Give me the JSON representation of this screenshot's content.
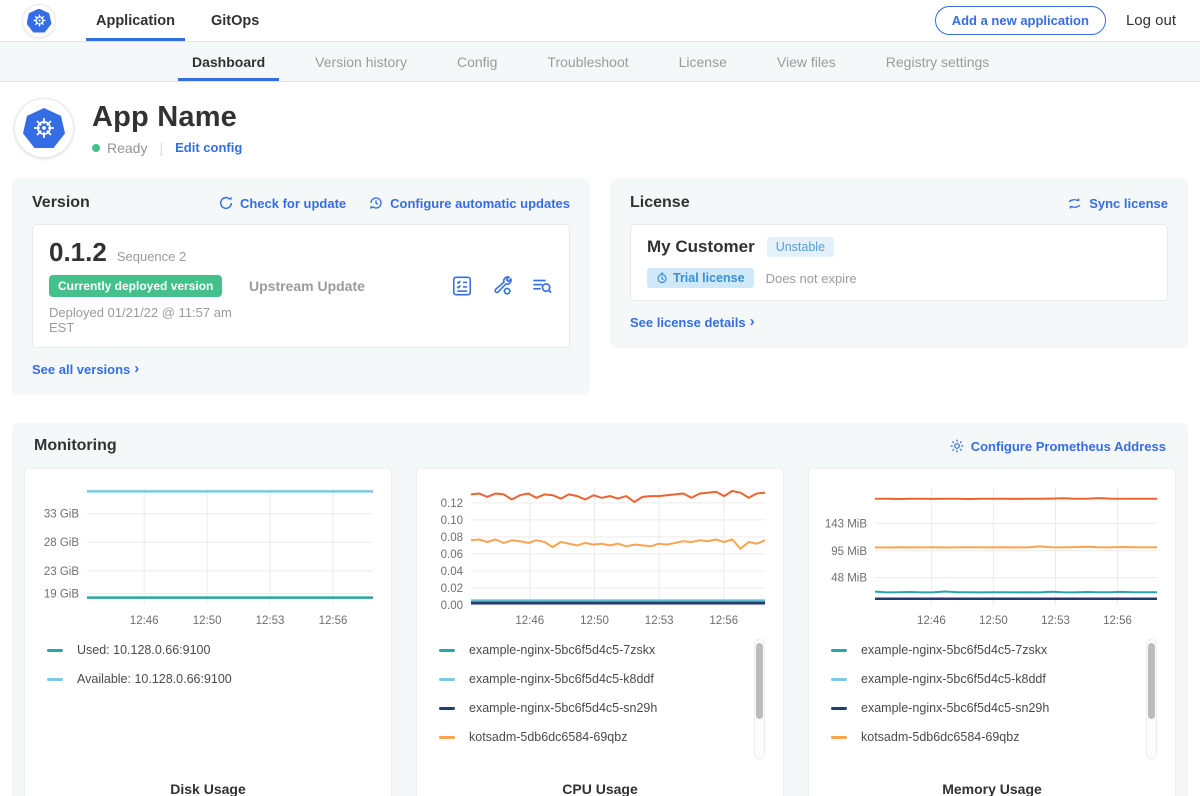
{
  "colors": {
    "accent_blue": "#356de4",
    "green": "#44c08a",
    "gray_text": "#9b9b9b",
    "dark_text": "#323232",
    "panel_bg": "#f5f8f9",
    "teal": "#29a5a5",
    "light_blue": "#7fc6e8",
    "navy": "#253c70",
    "orange": "#f9a452",
    "red_orange": "#eb6330"
  },
  "icons": {
    "logo": "kubernetes-helm-wheel",
    "check_update": "circular-refresh-arrow",
    "auto_updates": "clock-with-refresh-arrow",
    "preflight": "checklist-in-box",
    "config_tools": "wrench-with-gear",
    "view_logs": "text-lines-with-magnifier",
    "sync": "swap-arrows",
    "gear": "gear",
    "chevron": "chevron-right",
    "trial_clock": "stopwatch"
  },
  "top_nav": {
    "items": [
      {
        "label": "Application",
        "active": true
      },
      {
        "label": "GitOps",
        "active": false
      }
    ],
    "add_app_button": "Add a new application",
    "logout": "Log out"
  },
  "tabs": [
    "Dashboard",
    "Version history",
    "Config",
    "Troubleshoot",
    "License",
    "View files",
    "Registry settings"
  ],
  "active_tab": "Dashboard",
  "app_header": {
    "name": "App Name",
    "status": "Ready",
    "edit_config": "Edit config"
  },
  "version_card": {
    "title": "Version",
    "check_for_update": "Check for update",
    "configure_auto": "Configure automatic updates",
    "version": "0.1.2",
    "sequence": "Sequence 2",
    "deployed_badge": "Currently deployed version",
    "deployed_at": "Deployed 01/21/22 @ 11:57 am EST",
    "source": "Upstream Update",
    "see_all": "See all versions"
  },
  "license_card": {
    "title": "License",
    "sync": "Sync license",
    "customer": "My Customer",
    "channel_badge": "Unstable",
    "license_type": "Trial license",
    "expiry": "Does not expire",
    "see_details": "See license details"
  },
  "monitoring": {
    "title": "Monitoring",
    "configure_link": "Configure Prometheus Address",
    "charts": [
      {
        "type": "line",
        "title": "Disk Usage",
        "margin_left": 50,
        "ylim": [
          17,
          37.5
        ],
        "yticks": [
          {
            "value": 19,
            "label": "19 GiB"
          },
          {
            "value": 23,
            "label": "23 GiB"
          },
          {
            "value": 28,
            "label": "28 GiB"
          },
          {
            "value": 33,
            "label": "33 GiB"
          }
        ],
        "xticks": [
          "12:46",
          "12:50",
          "12:53",
          "12:56"
        ],
        "xtick_pos": [
          0.2,
          0.42,
          0.64,
          0.86
        ],
        "series": [
          {
            "color": "#7fc6e8",
            "flat": 36.9,
            "points": 30,
            "width": 2.5
          },
          {
            "color": "#29a5a5",
            "flat": 18.3,
            "points": 30,
            "width": 2.5
          }
        ],
        "legend": [
          {
            "color": "#29a5a5",
            "label": "Used: 10.128.0.66:9100"
          },
          {
            "color": "#7fc6e8",
            "label": "Available: 10.128.0.66:9100"
          }
        ],
        "scrollbar": false
      },
      {
        "type": "line",
        "title": "CPU Usage",
        "margin_left": 42,
        "ylim": [
          0,
          0.1375
        ],
        "yticks": [
          {
            "value": 0.0,
            "label": "0.00"
          },
          {
            "value": 0.02,
            "label": "0.02"
          },
          {
            "value": 0.04,
            "label": "0.04"
          },
          {
            "value": 0.06,
            "label": "0.06"
          },
          {
            "value": 0.08,
            "label": "0.08"
          },
          {
            "value": 0.1,
            "label": "0.10"
          },
          {
            "value": 0.12,
            "label": "0.12"
          }
        ],
        "xticks": [
          "12:46",
          "12:50",
          "12:53",
          "12:56"
        ],
        "xtick_pos": [
          0.2,
          0.42,
          0.64,
          0.86
        ],
        "series": [
          {
            "color": "#7fc6e8",
            "flat": 0.0055,
            "points": 30,
            "width": 2
          },
          {
            "color": "#29a5a5",
            "flat": 0.004,
            "points": 30,
            "width": 2
          },
          {
            "color": "#253c70",
            "flat": 0.002,
            "points": 30,
            "width": 2.5
          },
          {
            "color": "#f9a452",
            "width": 2,
            "values": [
              0.076,
              0.077,
              0.074,
              0.077,
              0.073,
              0.076,
              0.075,
              0.073,
              0.076,
              0.074,
              0.068,
              0.074,
              0.072,
              0.07,
              0.073,
              0.071,
              0.072,
              0.07,
              0.072,
              0.069,
              0.071,
              0.07,
              0.069,
              0.072,
              0.071,
              0.073,
              0.075,
              0.074,
              0.076,
              0.075,
              0.077,
              0.074,
              0.077,
              0.066,
              0.074,
              0.072,
              0.076
            ]
          },
          {
            "color": "#eb6330",
            "width": 2,
            "values": [
              0.13,
              0.131,
              0.127,
              0.131,
              0.13,
              0.124,
              0.129,
              0.131,
              0.126,
              0.13,
              0.129,
              0.125,
              0.13,
              0.128,
              0.124,
              0.129,
              0.126,
              0.128,
              0.125,
              0.128,
              0.121,
              0.127,
              0.128,
              0.128,
              0.129,
              0.13,
              0.131,
              0.126,
              0.131,
              0.132,
              0.133,
              0.128,
              0.134,
              0.132,
              0.126,
              0.131,
              0.132
            ]
          }
        ],
        "legend": [
          {
            "color": "#29a5a5",
            "label": "example-nginx-5bc6f5d4c5-7zskx"
          },
          {
            "color": "#7fc6e8",
            "label": "example-nginx-5bc6f5d4c5-k8ddf"
          },
          {
            "color": "#253c70",
            "label": "example-nginx-5bc6f5d4c5-sn29h"
          },
          {
            "color": "#f9a452",
            "label": "kotsadm-5db6dc6584-69qbz"
          }
        ],
        "scrollbar": true
      },
      {
        "type": "line",
        "title": "Memory Usage",
        "margin_left": 54,
        "ylim": [
          0,
          205
        ],
        "yticks": [
          {
            "value": 48,
            "label": "48 MiB"
          },
          {
            "value": 95,
            "label": "95 MiB"
          },
          {
            "value": 143,
            "label": "143 MiB"
          }
        ],
        "xticks": [
          "12:46",
          "12:50",
          "12:53",
          "12:56"
        ],
        "xtick_pos": [
          0.2,
          0.42,
          0.64,
          0.86
        ],
        "series": [
          {
            "color": "#253c70",
            "flat": 11,
            "points": 30,
            "width": 2.5
          },
          {
            "color": "#29a5a5",
            "width": 2,
            "values": [
              23.5,
              22,
              22.3,
              22.8,
              22.1,
              22.4,
              23.6,
              22.2,
              22.4,
              22,
              22.5,
              22.2,
              22,
              22.4,
              22.1,
              23.2,
              22.3,
              22,
              22.8,
              22.2,
              22.4,
              23,
              22.2,
              22.5,
              22.3
            ]
          },
          {
            "color": "#f9a452",
            "width": 2,
            "values": [
              101,
              100.8,
              101.1,
              100.9,
              101,
              101.2,
              100.8,
              101,
              101.1,
              100.9,
              101,
              101.3,
              101,
              100.9,
              102.6,
              101.2,
              101,
              101.4,
              102.2,
              101.1,
              101,
              101.6,
              101.2,
              101,
              101.1
            ]
          },
          {
            "color": "#eb6330",
            "width": 2,
            "values": [
              186,
              186.2,
              185.8,
              186,
              186.1,
              185.9,
              186,
              186.2,
              185.8,
              186,
              186.1,
              186,
              185.9,
              186.2,
              186,
              186.4,
              187.1,
              186.2,
              186,
              187.3,
              186.5,
              186.1,
              186.3,
              186,
              186.2
            ]
          }
        ],
        "legend": [
          {
            "color": "#29a5a5",
            "label": "example-nginx-5bc6f5d4c5-7zskx"
          },
          {
            "color": "#7fc6e8",
            "label": "example-nginx-5bc6f5d4c5-k8ddf"
          },
          {
            "color": "#253c70",
            "label": "example-nginx-5bc6f5d4c5-sn29h"
          },
          {
            "color": "#f9a452",
            "label": "kotsadm-5db6dc6584-69qbz"
          }
        ],
        "scrollbar": true
      }
    ]
  }
}
